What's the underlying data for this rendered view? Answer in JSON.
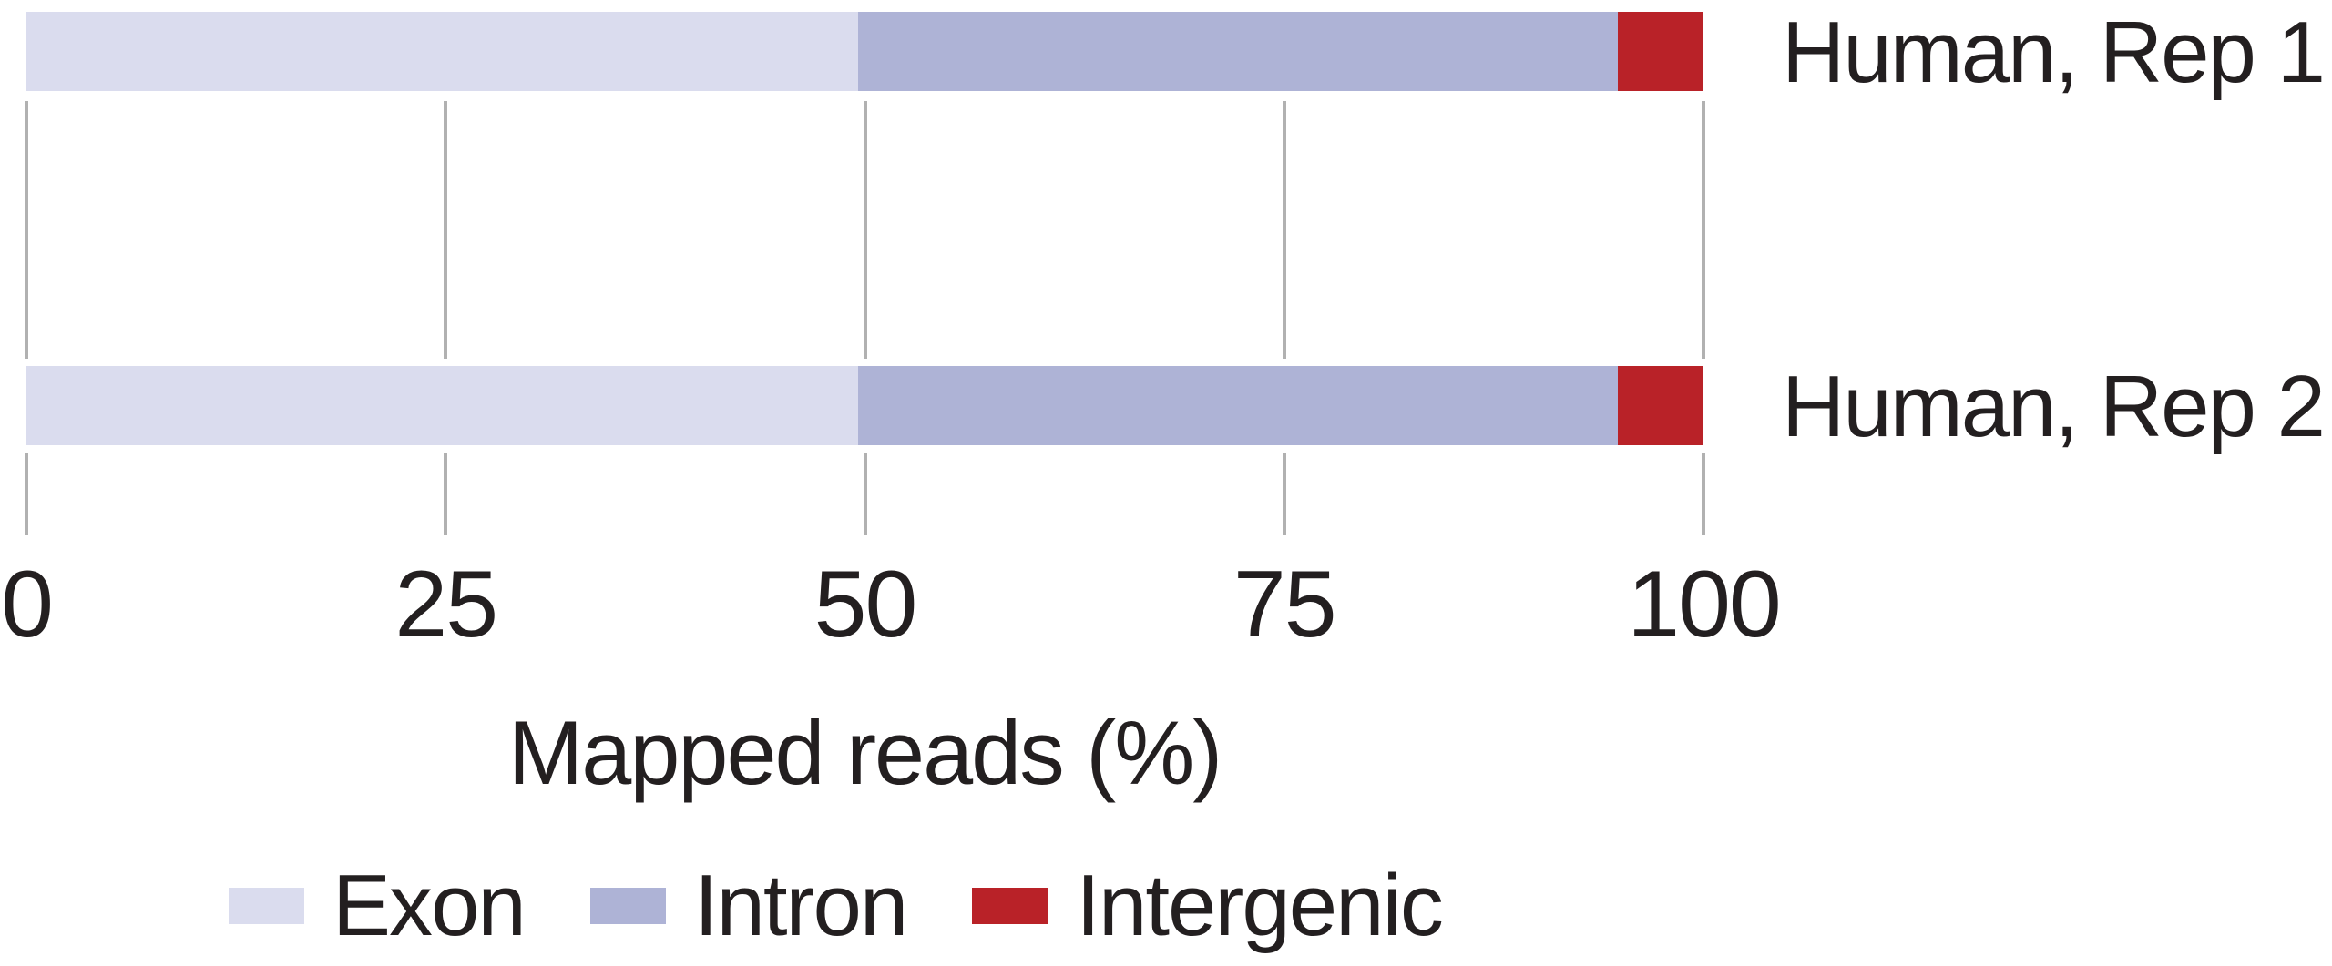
{
  "chart_data": {
    "type": "bar",
    "orientation": "horizontal",
    "stacked": true,
    "title": "",
    "xlabel": "Mapped reads (%)",
    "ylabel": "",
    "xlim": [
      0,
      100
    ],
    "xticks": [
      0,
      25,
      50,
      75,
      100
    ],
    "grid": true,
    "legend_position": "bottom",
    "categories": [
      "Human, Rep 1",
      "Human, Rep 2"
    ],
    "series": [
      {
        "name": "Exon",
        "color": "#dadcee",
        "values": [
          49.6,
          49.6
        ]
      },
      {
        "name": "Intron",
        "color": "#aeb3d6",
        "values": [
          45.3,
          45.3
        ]
      },
      {
        "name": "Intergenic",
        "color": "#b92228",
        "values": [
          5.1,
          5.1
        ]
      }
    ]
  },
  "style_colors": {
    "text": "#231f20",
    "gridline": "#b1b1b1",
    "background": "#ffffff"
  }
}
